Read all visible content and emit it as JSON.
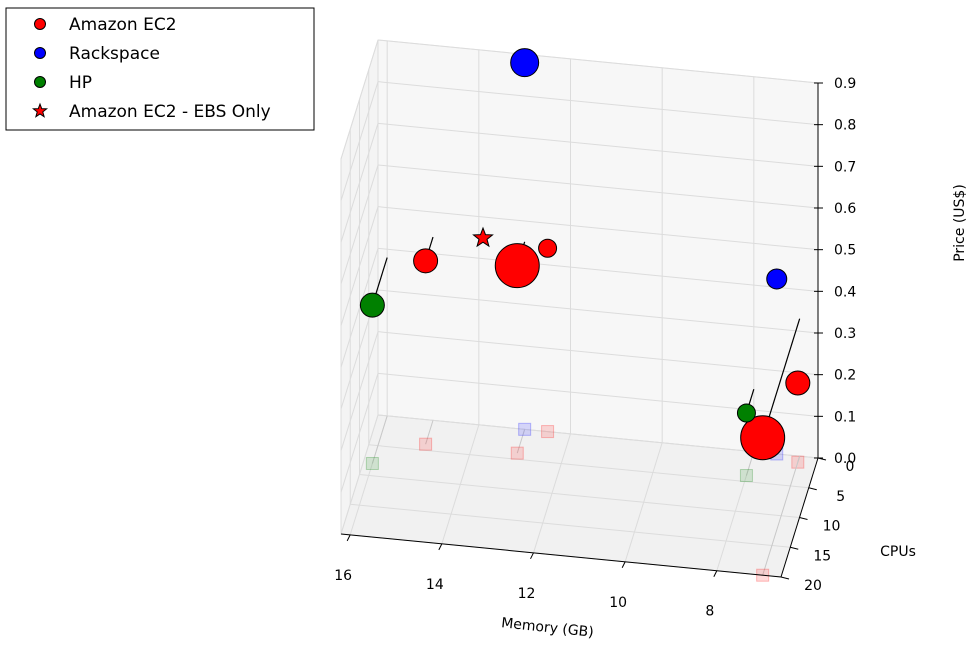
{
  "chart_data": {
    "type": "scatter3d",
    "xlabel": "Memory (GB)",
    "ylabel": "CPUs",
    "zlabel": "Price (US$)",
    "xticks": [
      16,
      14,
      12,
      10,
      8
    ],
    "yticks": [
      0,
      5,
      10,
      15,
      20
    ],
    "zticks": [
      "0.0",
      "0.1",
      "0.2",
      "0.3",
      "0.4",
      "0.5",
      "0.6",
      "0.7",
      "0.8",
      "0.9"
    ],
    "grid": true,
    "legend_position": "top-left",
    "series": [
      {
        "name": "Amazon EC2",
        "color": "#ff0000",
        "marker": "circle",
        "points": [
          {
            "memory": 15,
            "cpus": 4,
            "price": 0.44,
            "size": 3
          },
          {
            "memory": 13,
            "cpus": 4,
            "price": 0.45,
            "size": 6
          },
          {
            "memory": 12.5,
            "cpus": 0,
            "price": 0.44,
            "size": 1
          },
          {
            "memory": 7,
            "cpus": 1,
            "price": 0.19,
            "size": 3
          },
          {
            "memory": 7,
            "cpus": 20,
            "price": 0.33,
            "size": 6
          }
        ]
      },
      {
        "name": "Rackspace",
        "color": "#0000ff",
        "marker": "circle",
        "points": [
          {
            "memory": 13,
            "cpus": 0,
            "price": 0.88,
            "size": 4
          },
          {
            "memory": 7.5,
            "cpus": 0,
            "price": 0.42,
            "size": 2
          }
        ]
      },
      {
        "name": "HP",
        "color": "#008000",
        "marker": "circle",
        "points": [
          {
            "memory": 16,
            "cpus": 8,
            "price": 0.38,
            "size": 3
          },
          {
            "memory": 8,
            "cpus": 4,
            "price": 0.15,
            "size": 1
          }
        ]
      },
      {
        "name": "Amazon EC2 - EBS Only",
        "color": "#ff0000",
        "marker": "star",
        "points": []
      }
    ]
  }
}
